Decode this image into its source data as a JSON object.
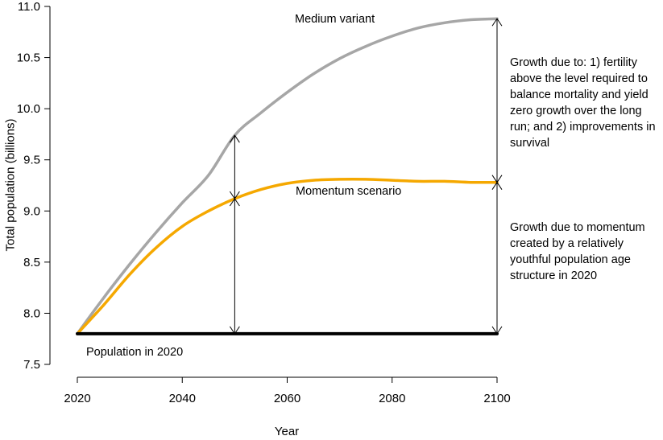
{
  "chart_data": {
    "type": "line",
    "xlabel": "Year",
    "ylabel": "Total population (billions)",
    "xlim": [
      2020,
      2100
    ],
    "ylim": [
      7.5,
      11.0
    ],
    "x_ticks": [
      "2020",
      "2040",
      "2060",
      "2080",
      "2100"
    ],
    "y_ticks": [
      "7.5",
      "8.0",
      "8.5",
      "9.0",
      "9.5",
      "10.0",
      "10.5",
      "11.0"
    ],
    "grid": false,
    "series": [
      {
        "name": "Medium variant",
        "color": "#a6a6a6",
        "x": [
          2020,
          2025,
          2030,
          2035,
          2040,
          2045,
          2050,
          2055,
          2060,
          2065,
          2070,
          2075,
          2080,
          2085,
          2090,
          2095,
          2100
        ],
        "values": [
          7.8,
          8.15,
          8.48,
          8.79,
          9.08,
          9.35,
          9.74,
          9.96,
          10.16,
          10.34,
          10.49,
          10.61,
          10.71,
          10.79,
          10.84,
          10.87,
          10.88
        ]
      },
      {
        "name": "Momentum scenario",
        "color": "#f5a800",
        "x": [
          2020,
          2025,
          2030,
          2035,
          2040,
          2045,
          2050,
          2055,
          2060,
          2065,
          2070,
          2075,
          2080,
          2085,
          2090,
          2095,
          2100
        ],
        "values": [
          7.8,
          8.08,
          8.38,
          8.64,
          8.85,
          9.0,
          9.12,
          9.21,
          9.27,
          9.3,
          9.31,
          9.31,
          9.3,
          9.29,
          9.29,
          9.28,
          9.28
        ]
      },
      {
        "name": "Population in 2020",
        "color": "#000000",
        "x": [
          2020,
          2100
        ],
        "values": [
          7.8,
          7.8
        ]
      }
    ],
    "arrows": [
      {
        "x": 2050,
        "from": 7.8,
        "to": 9.74
      },
      {
        "x": 2100,
        "from": 7.8,
        "to": 10.88
      }
    ],
    "annotations": {
      "upper": "Growth due to: 1) fertility above the level required to balance mortality and yield zero growth over the long run; and 2) improvements in survival",
      "lower": "Growth due to momentum created by a relatively youthful population age structure in 2020"
    }
  }
}
